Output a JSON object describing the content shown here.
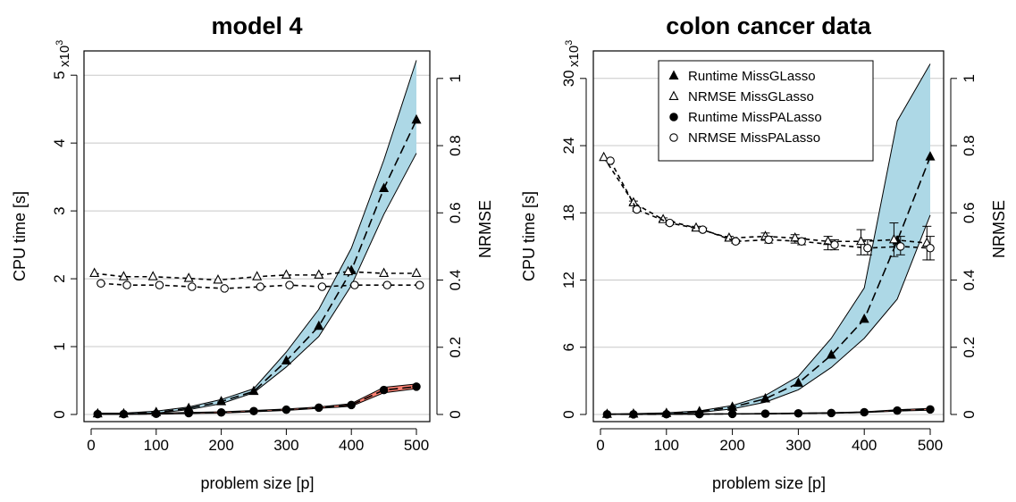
{
  "chart_data": [
    {
      "type": "line",
      "title": "model 4",
      "xlabel": "problem size [p]",
      "ylabel": "CPU time [s]",
      "ylabel_right": "NRMSE",
      "y_multiplier": "x10^3",
      "xlim": [
        0,
        500
      ],
      "ylim_left": [
        0,
        5.2
      ],
      "ylim_right": [
        0,
        1.05
      ],
      "x_ticks": [
        "0",
        "100",
        "200",
        "300",
        "400",
        "500"
      ],
      "y_ticks_left": [
        "0",
        "1",
        "2",
        "3",
        "4",
        "5"
      ],
      "y_ticks_right": [
        "0",
        "0.2",
        "0.4",
        "0.6",
        "0.8",
        "1"
      ],
      "grid": true,
      "legend": null,
      "series": [
        {
          "name": "Runtime MissGLasso",
          "marker": "filled-triangle",
          "axis": "left",
          "x": [
            10,
            50,
            100,
            150,
            200,
            250,
            300,
            350,
            400,
            450,
            500
          ],
          "y": [
            0.01,
            0.01,
            0.03,
            0.09,
            0.19,
            0.34,
            0.79,
            1.3,
            2.12,
            3.33,
            4.34
          ],
          "band_low": [
            0.0,
            0.0,
            0.02,
            0.07,
            0.16,
            0.32,
            0.7,
            1.15,
            1.9,
            2.95,
            3.85
          ],
          "band_high": [
            0.02,
            0.02,
            0.05,
            0.11,
            0.22,
            0.38,
            0.92,
            1.55,
            2.45,
            3.75,
            5.22
          ],
          "band_color": "#add8e6"
        },
        {
          "name": "NRMSE MissGLasso",
          "marker": "open-triangle",
          "axis": "right",
          "x": [
            5,
            50,
            95,
            150,
            195,
            255,
            300,
            350,
            395,
            450,
            500
          ],
          "y": [
            0.42,
            0.41,
            0.41,
            0.405,
            0.4,
            0.41,
            0.415,
            0.415,
            0.425,
            0.42,
            0.42
          ]
        },
        {
          "name": "Runtime MissPALasso",
          "marker": "filled-circle",
          "axis": "left",
          "x": [
            10,
            50,
            100,
            150,
            200,
            250,
            300,
            350,
            400,
            450,
            500
          ],
          "y": [
            0.005,
            0.005,
            0.01,
            0.02,
            0.03,
            0.05,
            0.07,
            0.1,
            0.14,
            0.36,
            0.41
          ],
          "band_low": [
            0.0,
            0.0,
            0.005,
            0.015,
            0.02,
            0.04,
            0.06,
            0.09,
            0.12,
            0.32,
            0.38
          ],
          "band_high": [
            0.01,
            0.01,
            0.02,
            0.03,
            0.04,
            0.06,
            0.08,
            0.11,
            0.16,
            0.4,
            0.45
          ],
          "band_color": "#fa8072"
        },
        {
          "name": "NRMSE MissPALasso",
          "marker": "open-circle",
          "axis": "right",
          "x": [
            15,
            55,
            105,
            155,
            205,
            260,
            305,
            355,
            405,
            455,
            505
          ],
          "y": [
            0.39,
            0.385,
            0.385,
            0.38,
            0.375,
            0.38,
            0.385,
            0.38,
            0.385,
            0.385,
            0.385
          ]
        }
      ]
    },
    {
      "type": "line",
      "title": "colon cancer data",
      "xlabel": "problem size [p]",
      "ylabel": "CPU time [s]",
      "ylabel_right": "NRMSE",
      "y_multiplier": "x10^3",
      "xlim": [
        0,
        500
      ],
      "ylim_left": [
        0,
        31.5
      ],
      "ylim_right": [
        0,
        1.05
      ],
      "x_ticks": [
        "0",
        "100",
        "200",
        "300",
        "400",
        "500"
      ],
      "y_ticks_left": [
        "0",
        "6",
        "12",
        "18",
        "24",
        "30"
      ],
      "y_ticks_right": [
        "0",
        "0.2",
        "0.4",
        "0.6",
        "0.8",
        "1"
      ],
      "grid": true,
      "legend": "top-center",
      "series": [
        {
          "name": "Runtime MissGLasso",
          "marker": "filled-triangle",
          "axis": "left",
          "x": [
            10,
            50,
            100,
            150,
            200,
            250,
            300,
            350,
            400,
            450,
            500
          ],
          "y": [
            0.02,
            0.04,
            0.1,
            0.25,
            0.65,
            1.4,
            2.8,
            5.3,
            8.5,
            15.5,
            23
          ],
          "band_low": [
            0.0,
            0.0,
            0.05,
            0.18,
            0.5,
            1.1,
            2.2,
            4.2,
            6.8,
            10.3,
            17.8
          ],
          "band_high": [
            0.05,
            0.07,
            0.15,
            0.32,
            0.8,
            1.7,
            3.4,
            6.8,
            11.3,
            26.2,
            31.3
          ],
          "band_color": "#add8e6"
        },
        {
          "name": "NRMSE MissGLasso",
          "marker": "open-triangle",
          "axis": "right",
          "x": [
            5,
            50,
            95,
            145,
            195,
            250,
            295,
            345,
            395,
            445,
            495
          ],
          "y": [
            0.765,
            0.63,
            0.58,
            0.555,
            0.525,
            0.53,
            0.525,
            0.515,
            0.515,
            0.52,
            0.51
          ],
          "err_low": [
            0.765,
            0.625,
            0.575,
            0.55,
            0.52,
            0.52,
            0.51,
            0.49,
            0.475,
            0.47,
            0.46
          ],
          "err_high": [
            0.765,
            0.635,
            0.585,
            0.56,
            0.53,
            0.54,
            0.535,
            0.53,
            0.55,
            0.57,
            0.56
          ]
        },
        {
          "name": "Runtime MissPALasso",
          "marker": "filled-circle",
          "axis": "left",
          "x": [
            10,
            50,
            100,
            150,
            200,
            250,
            300,
            350,
            400,
            450,
            500
          ],
          "y": [
            0.01,
            0.01,
            0.02,
            0.03,
            0.05,
            0.07,
            0.1,
            0.13,
            0.2,
            0.35,
            0.45
          ],
          "band_low": [
            0.0,
            0.0,
            0.01,
            0.02,
            0.04,
            0.05,
            0.08,
            0.11,
            0.17,
            0.3,
            0.38
          ],
          "band_high": [
            0.02,
            0.02,
            0.03,
            0.05,
            0.07,
            0.09,
            0.13,
            0.16,
            0.24,
            0.42,
            0.55
          ],
          "band_color": "#fa8072"
        },
        {
          "name": "NRMSE MissPALasso",
          "marker": "open-circle",
          "axis": "right",
          "x": [
            15,
            55,
            105,
            155,
            205,
            255,
            305,
            355,
            405,
            455,
            500
          ],
          "y": [
            0.755,
            0.61,
            0.57,
            0.55,
            0.515,
            0.52,
            0.515,
            0.505,
            0.495,
            0.5,
            0.495
          ],
          "err_low": [
            0.755,
            0.605,
            0.565,
            0.545,
            0.51,
            0.51,
            0.505,
            0.49,
            0.475,
            0.475,
            0.46
          ],
          "err_high": [
            0.755,
            0.615,
            0.575,
            0.555,
            0.52,
            0.53,
            0.525,
            0.52,
            0.52,
            0.53,
            0.53
          ]
        }
      ]
    }
  ]
}
